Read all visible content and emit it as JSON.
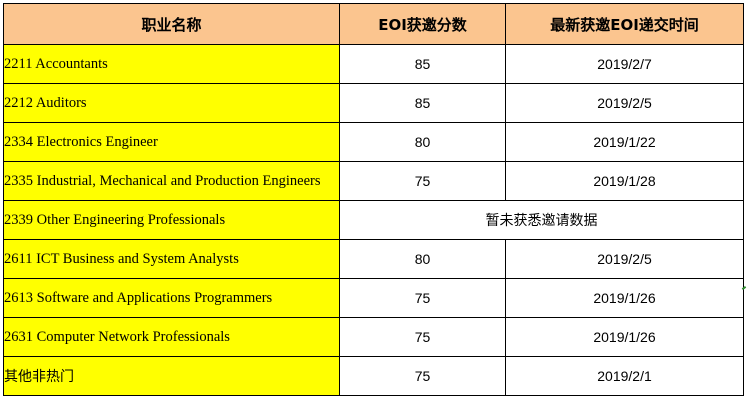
{
  "table": {
    "headers": [
      "职业名称",
      "EOI获邀分数",
      "最新获邀EOI递交时间"
    ],
    "rows": [
      {
        "name": "2211 Accountants",
        "score": "85",
        "date": "2019/2/7"
      },
      {
        "name": "2212 Auditors",
        "score": "85",
        "date": "2019/2/5"
      },
      {
        "name": "2334 Electronics Engineer",
        "score": "80",
        "date": "2019/1/22"
      },
      {
        "name": "2335 Industrial, Mechanical and Production Engineers",
        "score": "75",
        "date": "2019/1/28"
      },
      {
        "name": "2339 Other Engineering Professionals",
        "note": "暂未获悉邀请数据"
      },
      {
        "name": "2611 ICT Business and System Analysts",
        "score": "80",
        "date": "2019/2/5"
      },
      {
        "name": "2613 Software and Applications Programmers",
        "score": "75",
        "date": "2019/1/26"
      },
      {
        "name": "2631 Computer Network Professionals",
        "score": "75",
        "date": "2019/1/26"
      },
      {
        "name": "其他非热门",
        "score": "75",
        "date": "2019/2/1"
      }
    ]
  },
  "colors": {
    "header_fill": "#fbc58f",
    "name_fill": "#ffff00",
    "border": "#000000"
  }
}
